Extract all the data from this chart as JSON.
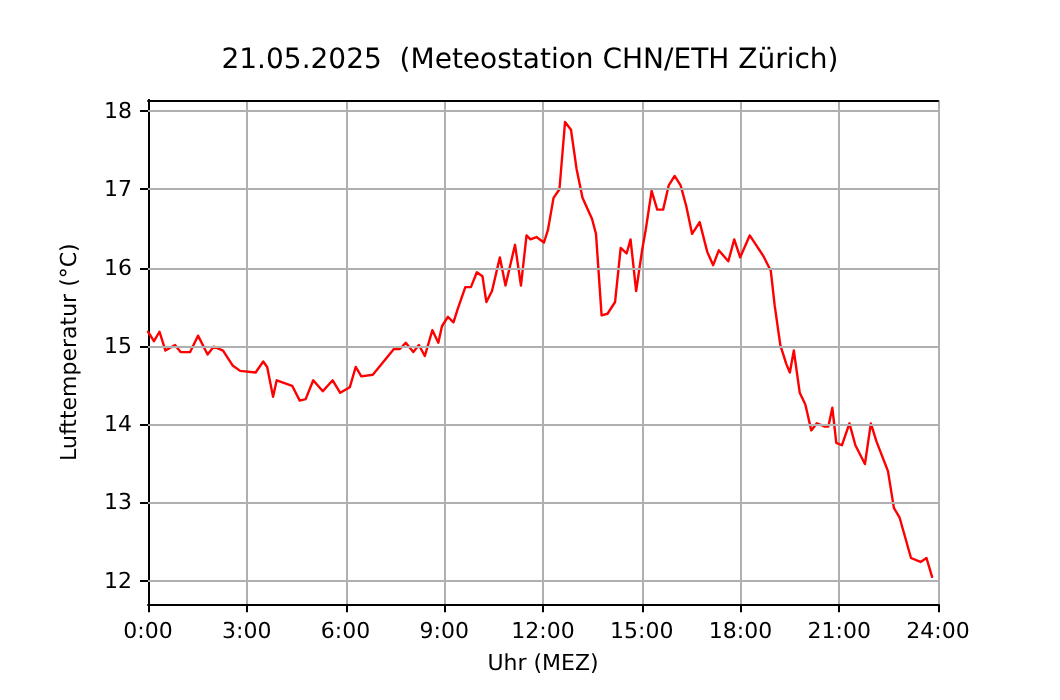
{
  "chart_data": {
    "type": "line",
    "title": "21.05.2025  (Meteostation CHN/ETH Zürich)",
    "xlabel": "Uhr (MEZ)",
    "ylabel": "Lufttemperatur (°C)",
    "x": [
      0,
      0.18,
      0.35,
      0.53,
      0.82,
      0.99,
      1.28,
      1.52,
      1.81,
      2.0,
      2.28,
      2.57,
      2.8,
      3.27,
      3.5,
      3.62,
      3.8,
      3.91,
      4.38,
      4.61,
      4.79,
      5.02,
      5.31,
      5.61,
      5.84,
      6.13,
      6.31,
      6.48,
      6.83,
      7.47,
      7.65,
      7.83,
      8.06,
      8.23,
      8.41,
      8.64,
      8.82,
      8.93,
      9.11,
      9.28,
      9.4,
      9.64,
      9.81,
      9.99,
      10.16,
      10.28,
      10.45,
      10.69,
      10.86,
      11.15,
      11.33,
      11.5,
      11.62,
      11.8,
      12.03,
      12.15,
      12.32,
      12.5,
      12.67,
      12.85,
      13.02,
      13.2,
      13.49,
      13.61,
      13.78,
      13.96,
      14.19,
      14.36,
      14.54,
      14.66,
      14.83,
      15.01,
      15.12,
      15.3,
      15.47,
      15.65,
      15.82,
      16.0,
      16.18,
      16.35,
      16.53,
      16.76,
      16.99,
      17.17,
      17.34,
      17.63,
      17.81,
      17.99,
      18.28,
      18.69,
      18.92,
      19.04,
      19.21,
      19.39,
      19.5,
      19.62,
      19.8,
      19.97,
      20.15,
      20.32,
      20.55,
      20.67,
      20.79,
      20.91,
      21.08,
      21.31,
      21.49,
      21.66,
      21.78,
      21.96,
      22.13,
      22.48,
      22.66,
      22.83,
      23.18,
      23.47,
      23.65,
      23.82
    ],
    "series": [
      {
        "color": "#ff0000",
        "values": [
          15.18,
          15.06,
          15.18,
          14.94,
          15.01,
          14.92,
          14.92,
          15.13,
          14.89,
          14.99,
          14.94,
          14.75,
          14.68,
          14.66,
          14.8,
          14.73,
          14.35,
          14.56,
          14.49,
          14.3,
          14.32,
          14.56,
          14.42,
          14.56,
          14.4,
          14.47,
          14.73,
          14.61,
          14.63,
          14.96,
          14.96,
          15.04,
          14.92,
          15.01,
          14.87,
          15.2,
          15.04,
          15.25,
          15.37,
          15.3,
          15.46,
          15.75,
          15.75,
          15.94,
          15.89,
          15.56,
          15.7,
          16.13,
          15.77,
          16.29,
          15.77,
          16.41,
          16.36,
          16.39,
          16.32,
          16.48,
          16.89,
          17.0,
          17.86,
          17.76,
          17.26,
          16.89,
          16.62,
          16.43,
          15.39,
          15.41,
          15.56,
          16.25,
          16.18,
          16.36,
          15.7,
          16.22,
          16.48,
          16.98,
          16.74,
          16.74,
          17.05,
          17.17,
          17.05,
          16.79,
          16.43,
          16.58,
          16.2,
          16.03,
          16.22,
          16.08,
          16.36,
          16.13,
          16.41,
          16.15,
          15.96,
          15.51,
          15.01,
          14.77,
          14.66,
          14.94,
          14.4,
          14.25,
          13.92,
          14.01,
          13.97,
          13.97,
          14.21,
          13.76,
          13.73,
          14.01,
          13.73,
          13.59,
          13.49,
          14.01,
          13.78,
          13.4,
          12.93,
          12.81,
          12.29,
          12.24,
          12.29,
          12.05
        ]
      }
    ],
    "xlim": [
      0,
      24
    ],
    "xticks": [
      {
        "value": 0,
        "label": "0:00"
      },
      {
        "value": 3,
        "label": "3:00"
      },
      {
        "value": 6,
        "label": "6:00"
      },
      {
        "value": 9,
        "label": "9:00"
      },
      {
        "value": 12,
        "label": "12:00"
      },
      {
        "value": 15,
        "label": "15:00"
      },
      {
        "value": 18,
        "label": "18:00"
      },
      {
        "value": 21,
        "label": "21:00"
      },
      {
        "value": 24,
        "label": "24:00"
      }
    ],
    "ylim": [
      11.7,
      18.14
    ],
    "yticks": [
      12,
      13,
      14,
      15,
      16,
      17,
      18
    ],
    "grid": true,
    "marker": "none",
    "line_style": "solid"
  }
}
